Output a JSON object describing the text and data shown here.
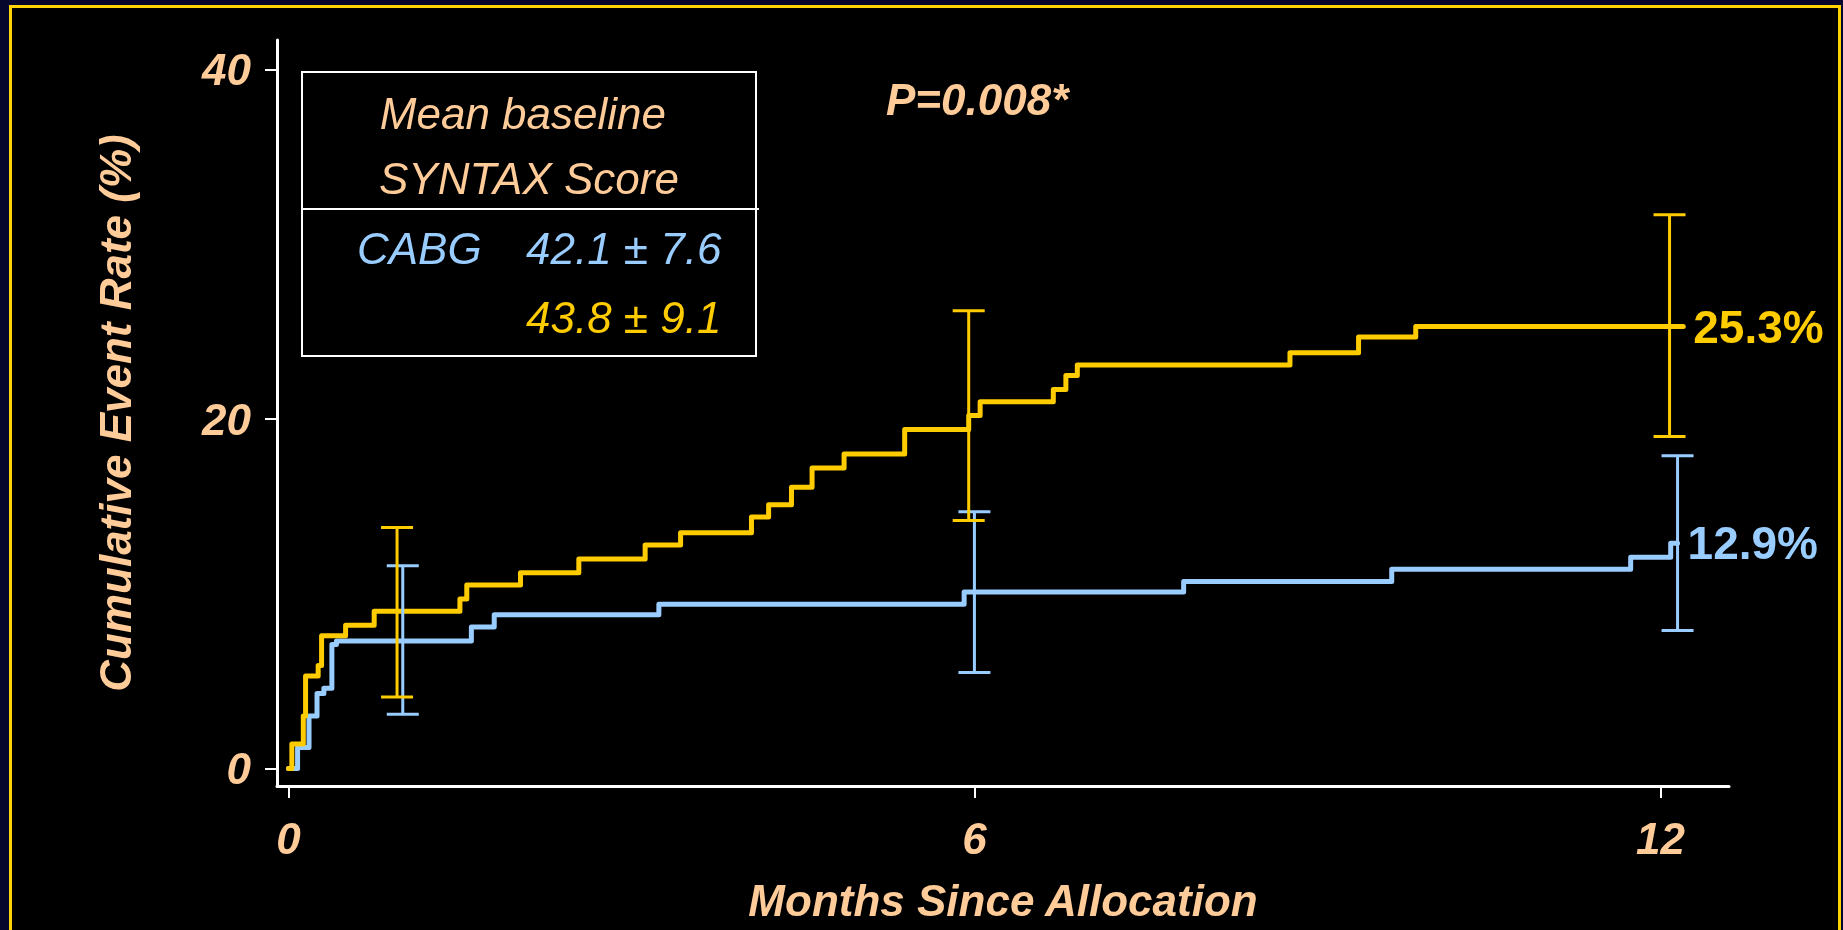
{
  "chart_data": {
    "type": "step",
    "xlabel": "Months Since Allocation",
    "ylabel": "Cumulative Event Rate (%)",
    "xlim": [
      -0.1,
      12.6
    ],
    "ylim": [
      -1,
      41.7
    ],
    "xticks": [
      0,
      6,
      12
    ],
    "yticks": [
      0,
      20,
      40
    ],
    "legend": "top left",
    "legend_title": "Mean baseline SYNTAX Score",
    "marker": "none",
    "annotations": [
      "P=0.008*",
      "42.1 ± 7.6",
      "43.8 ± 9.1"
    ],
    "series": [
      {
        "name": "CABG",
        "color": "#99ccff",
        "x": [
          0,
          0.08,
          0.18,
          0.25,
          0.31,
          0.38,
          0.42,
          1.0,
          1.6,
          1.8,
          3.24,
          5.91,
          6.0,
          7.83,
          9.65,
          11.74,
          12.09,
          12.15
        ],
        "values": [
          0,
          1.2,
          3.0,
          4.3,
          4.6,
          7.1,
          7.3,
          7.3,
          8.1,
          8.8,
          9.4,
          10.1,
          10.1,
          10.7,
          11.4,
          12.1,
          12.9,
          12.9
        ],
        "errors": [
          null,
          null,
          null,
          null,
          null,
          null,
          null,
          [
            3.1,
            11.6
          ],
          null,
          null,
          null,
          null,
          [
            5.5,
            14.7
          ],
          null,
          null,
          null,
          null,
          [
            7.9,
            17.9
          ]
        ],
        "value_labels": [
          null,
          null,
          null,
          null,
          null,
          null,
          null,
          null,
          null,
          null,
          null,
          null,
          null,
          null,
          null,
          null,
          null,
          "12.9%"
        ]
      },
      {
        "color": "#ffcc00",
        "x": [
          0,
          0.03,
          0.13,
          0.15,
          0.26,
          0.29,
          0.5,
          0.75,
          0.95,
          1.5,
          1.56,
          2.03,
          2.54,
          3.12,
          3.43,
          4.05,
          4.2,
          4.4,
          4.58,
          4.86,
          5.39,
          5.95,
          6.05,
          6.69,
          6.8,
          6.9,
          8.76,
          9.36,
          9.86,
          12.08,
          12.2
        ],
        "values": [
          0,
          1.4,
          3.0,
          5.3,
          5.9,
          7.6,
          8.2,
          9.0,
          9.0,
          9.7,
          10.5,
          11.2,
          12.0,
          12.8,
          13.5,
          14.4,
          15.1,
          16.1,
          17.2,
          18.0,
          19.4,
          20.2,
          21.0,
          21.7,
          22.5,
          23.1,
          23.8,
          24.7,
          25.3,
          25.3,
          25.3
        ],
        "errors": [
          null,
          null,
          null,
          null,
          null,
          null,
          null,
          null,
          [
            4.1,
            13.8
          ],
          null,
          null,
          null,
          null,
          null,
          null,
          null,
          null,
          null,
          null,
          null,
          null,
          [
            14.2,
            26.2
          ],
          null,
          null,
          null,
          null,
          null,
          null,
          null,
          [
            19.0,
            31.7
          ],
          null
        ],
        "value_labels": [
          null,
          null,
          null,
          null,
          null,
          null,
          null,
          null,
          null,
          null,
          null,
          null,
          null,
          null,
          null,
          null,
          null,
          null,
          null,
          null,
          null,
          null,
          null,
          null,
          null,
          null,
          null,
          null,
          null,
          null,
          "25.3%"
        ]
      }
    ]
  }
}
